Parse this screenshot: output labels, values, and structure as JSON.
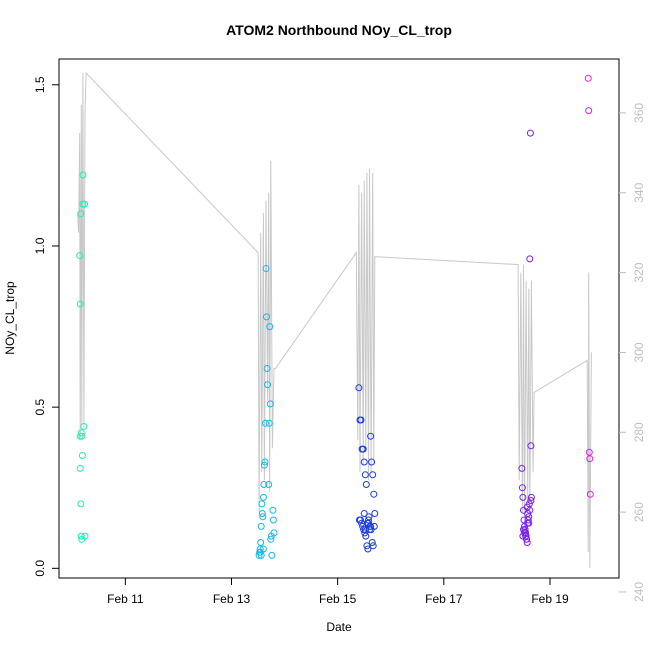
{
  "chart_data": {
    "type": "scatter",
    "title": "ATOM2 Northbound NOy_CL_trop",
    "xlabel": "Date",
    "ylabel": "NOy_CL_trop",
    "x_unit": "day of February",
    "xlim": [
      9.75,
      20.3
    ],
    "ylim": [
      -0.03,
      1.58
    ],
    "y2lim": [
      243.5,
      373.5
    ],
    "x_ticks": [
      {
        "value": 11,
        "label": "Feb 11"
      },
      {
        "value": 13,
        "label": "Feb 13"
      },
      {
        "value": 15,
        "label": "Feb 15"
      },
      {
        "value": 17,
        "label": "Feb 17"
      },
      {
        "value": 19,
        "label": "Feb 19"
      }
    ],
    "y_ticks": [
      {
        "value": 0.0,
        "label": "0.0"
      },
      {
        "value": 0.5,
        "label": "0.5"
      },
      {
        "value": 1.0,
        "label": "1.0"
      },
      {
        "value": 1.5,
        "label": "1.5"
      }
    ],
    "y2_ticks": [
      {
        "value": 240,
        "label": "240"
      },
      {
        "value": 260,
        "label": "260"
      },
      {
        "value": 280,
        "label": "280"
      },
      {
        "value": 300,
        "label": "300"
      },
      {
        "value": 320,
        "label": "320"
      },
      {
        "value": 340,
        "label": "340"
      },
      {
        "value": 360,
        "label": "360"
      }
    ],
    "grid": false,
    "legend": "none",
    "series": [
      {
        "color": "#1ef2b2",
        "x": [
          10.14,
          10.15,
          10.16,
          10.17,
          10.18,
          10.16,
          10.2,
          10.15,
          10.17,
          10.22,
          10.19,
          10.24,
          10.15,
          10.18,
          10.2,
          10.23
        ],
        "y": [
          0.97,
          0.82,
          0.2,
          0.1,
          0.09,
          1.1,
          1.22,
          0.41,
          0.42,
          0.44,
          0.35,
          0.1,
          0.31,
          0.41,
          1.13,
          1.13
        ]
      },
      {
        "color": "#16b8e6",
        "x": [
          13.52,
          13.53,
          13.54,
          13.55,
          13.56,
          13.57,
          13.58,
          13.59,
          13.6,
          13.61,
          13.62,
          13.63,
          13.64,
          13.65,
          13.66,
          13.67,
          13.68,
          13.7,
          13.71,
          13.72,
          13.73,
          13.74,
          13.75,
          13.76,
          13.78,
          13.79,
          13.8,
          13.56,
          13.6,
          13.54
        ],
        "y": [
          0.04,
          0.05,
          0.06,
          0.08,
          0.13,
          0.2,
          0.17,
          0.16,
          0.22,
          0.26,
          0.32,
          0.33,
          0.45,
          0.93,
          0.78,
          0.62,
          0.57,
          0.26,
          0.45,
          0.75,
          0.51,
          0.09,
          0.1,
          0.04,
          0.18,
          0.15,
          0.11,
          0.04,
          0.06,
          0.05
        ]
      },
      {
        "color": "#1a3ae6",
        "x": [
          15.4,
          15.42,
          15.44,
          15.46,
          15.48,
          15.5,
          15.52,
          15.54,
          15.56,
          15.58,
          15.6,
          15.62,
          15.64,
          15.66,
          15.68,
          15.7,
          15.43,
          15.45,
          15.47,
          15.49,
          15.51,
          15.53,
          15.55,
          15.57,
          15.59,
          15.61,
          15.63,
          15.65,
          15.67,
          15.69,
          15.41,
          15.5,
          15.58,
          15.62,
          15.52
        ],
        "y": [
          0.56,
          0.46,
          0.46,
          0.37,
          0.37,
          0.33,
          0.29,
          0.26,
          0.14,
          0.15,
          0.12,
          0.41,
          0.33,
          0.29,
          0.23,
          0.17,
          0.15,
          0.14,
          0.13,
          0.12,
          0.11,
          0.1,
          0.07,
          0.06,
          0.16,
          0.13,
          0.12,
          0.08,
          0.07,
          0.13,
          0.15,
          0.17,
          0.14,
          0.13,
          0.12
        ]
      },
      {
        "color": "#7b22e6",
        "x": [
          18.47,
          18.48,
          18.49,
          18.5,
          18.51,
          18.52,
          18.53,
          18.54,
          18.55,
          18.56,
          18.57,
          18.58,
          18.59,
          18.6,
          18.61,
          18.62,
          18.63,
          18.64,
          18.65,
          18.5,
          18.52,
          18.54,
          18.56,
          18.58,
          18.6,
          18.62,
          18.64,
          18.49,
          18.53,
          18.57
        ],
        "y": [
          0.31,
          0.25,
          0.22,
          0.18,
          0.15,
          0.13,
          0.12,
          0.11,
          0.1,
          0.09,
          0.08,
          0.17,
          0.15,
          0.14,
          0.2,
          0.96,
          1.35,
          0.38,
          0.22,
          0.12,
          0.11,
          0.1,
          0.09,
          0.14,
          0.16,
          0.18,
          0.21,
          0.1,
          0.12,
          0.19
        ]
      },
      {
        "color": "#e020e0",
        "x": [
          19.72,
          19.73,
          19.74,
          19.75,
          19.76
        ],
        "y": [
          1.52,
          1.42,
          0.36,
          0.34,
          0.23
        ]
      }
    ],
    "line_series": {
      "color": "#c8c8c8",
      "x": [
        10.1,
        10.12,
        10.14,
        10.15,
        10.17,
        10.18,
        10.2,
        10.22,
        10.24,
        10.26,
        13.5,
        13.52,
        13.55,
        13.57,
        13.6,
        13.62,
        13.65,
        13.68,
        13.7,
        13.72,
        13.74,
        13.77,
        13.8,
        13.83,
        15.35,
        15.38,
        15.4,
        15.42,
        15.45,
        15.48,
        15.5,
        15.53,
        15.55,
        15.58,
        15.6,
        15.63,
        15.66,
        15.68,
        15.7,
        18.4,
        18.42,
        18.45,
        18.48,
        18.5,
        18.52,
        18.55,
        18.58,
        18.6,
        18.62,
        18.65,
        18.68,
        18.7,
        19.7,
        19.72,
        19.73,
        19.75,
        19.78
      ],
      "y2": [
        335,
        330,
        355,
        278,
        362,
        282,
        370,
        281,
        360,
        370,
        325,
        260,
        330,
        270,
        335,
        268,
        338,
        288,
        340,
        265,
        348,
        276,
        296,
        296,
        325,
        278,
        342,
        270,
        340,
        272,
        343,
        275,
        345,
        268,
        346,
        270,
        345,
        272,
        324,
        322,
        268,
        320,
        260,
        322,
        255,
        318,
        262,
        316,
        258,
        318,
        270,
        290,
        298,
        250,
        320,
        246,
        300
      ]
    }
  }
}
